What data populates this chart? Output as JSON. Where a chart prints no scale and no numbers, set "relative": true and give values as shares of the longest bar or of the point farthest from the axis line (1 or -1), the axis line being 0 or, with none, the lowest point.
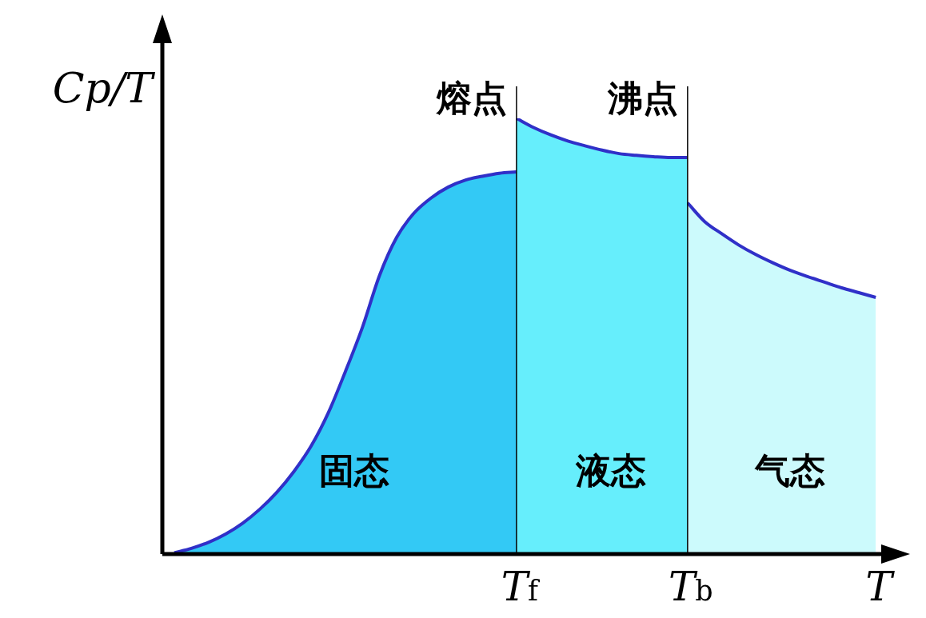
{
  "chart_data": {
    "type": "area",
    "relative": true,
    "ylabel": "Cp/T",
    "legend": false,
    "tick_labels": "x",
    "categories": [
      null,
      null,
      null,
      null,
      null,
      null,
      null,
      null,
      null,
      null,
      null,
      null,
      null,
      null,
      null,
      null,
      null,
      null,
      null,
      null,
      "T$_{f}$",
      null,
      null,
      null,
      null,
      null,
      null,
      null,
      null,
      null,
      "T$_{b}$",
      null,
      null,
      null,
      null,
      null,
      null,
      null,
      null,
      null,
      null,
      "T"
    ],
    "series": [
      {
        "name": "固态",
        "color": "#33c9f5",
        "values": [
          0.003,
          0.013,
          0.027,
          0.046,
          0.071,
          0.103,
          0.142,
          0.19,
          0.248,
          0.324,
          0.419,
          0.521,
          0.64,
          0.727,
          0.782,
          0.817,
          0.842,
          0.858,
          0.867,
          0.874,
          0.877,
          null,
          null,
          null,
          null,
          null,
          null,
          null,
          null,
          null,
          null,
          null,
          null,
          null,
          null,
          null,
          null,
          null,
          null,
          null,
          null,
          null
        ]
      },
      {
        "name": "液态",
        "color": "#66eefc",
        "values": [
          null,
          null,
          null,
          null,
          null,
          null,
          null,
          null,
          null,
          null,
          null,
          null,
          null,
          null,
          null,
          null,
          null,
          null,
          null,
          null,
          1,
          0.979,
          0.962,
          0.948,
          0.937,
          0.927,
          0.919,
          0.915,
          0.912,
          0.91,
          0.91,
          null,
          null,
          null,
          null,
          null,
          null,
          null,
          null,
          null,
          null,
          null
        ]
      },
      {
        "name": "气态",
        "color": "#ccfafc",
        "values": [
          null,
          null,
          null,
          null,
          null,
          null,
          null,
          null,
          null,
          null,
          null,
          null,
          null,
          null,
          null,
          null,
          null,
          null,
          null,
          null,
          null,
          null,
          null,
          null,
          null,
          null,
          null,
          null,
          null,
          null,
          0.806,
          0.763,
          0.735,
          0.709,
          0.687,
          0.668,
          0.651,
          0.637,
          0.624,
          0.611,
          0.6,
          0.589
        ]
      }
    ],
    "ref_lines": [
      {
        "axis": "x",
        "value": "T$_{f}$",
        "label": "熔点"
      },
      {
        "axis": "x",
        "value": "T$_{b}$",
        "label": "沸点"
      }
    ]
  }
}
